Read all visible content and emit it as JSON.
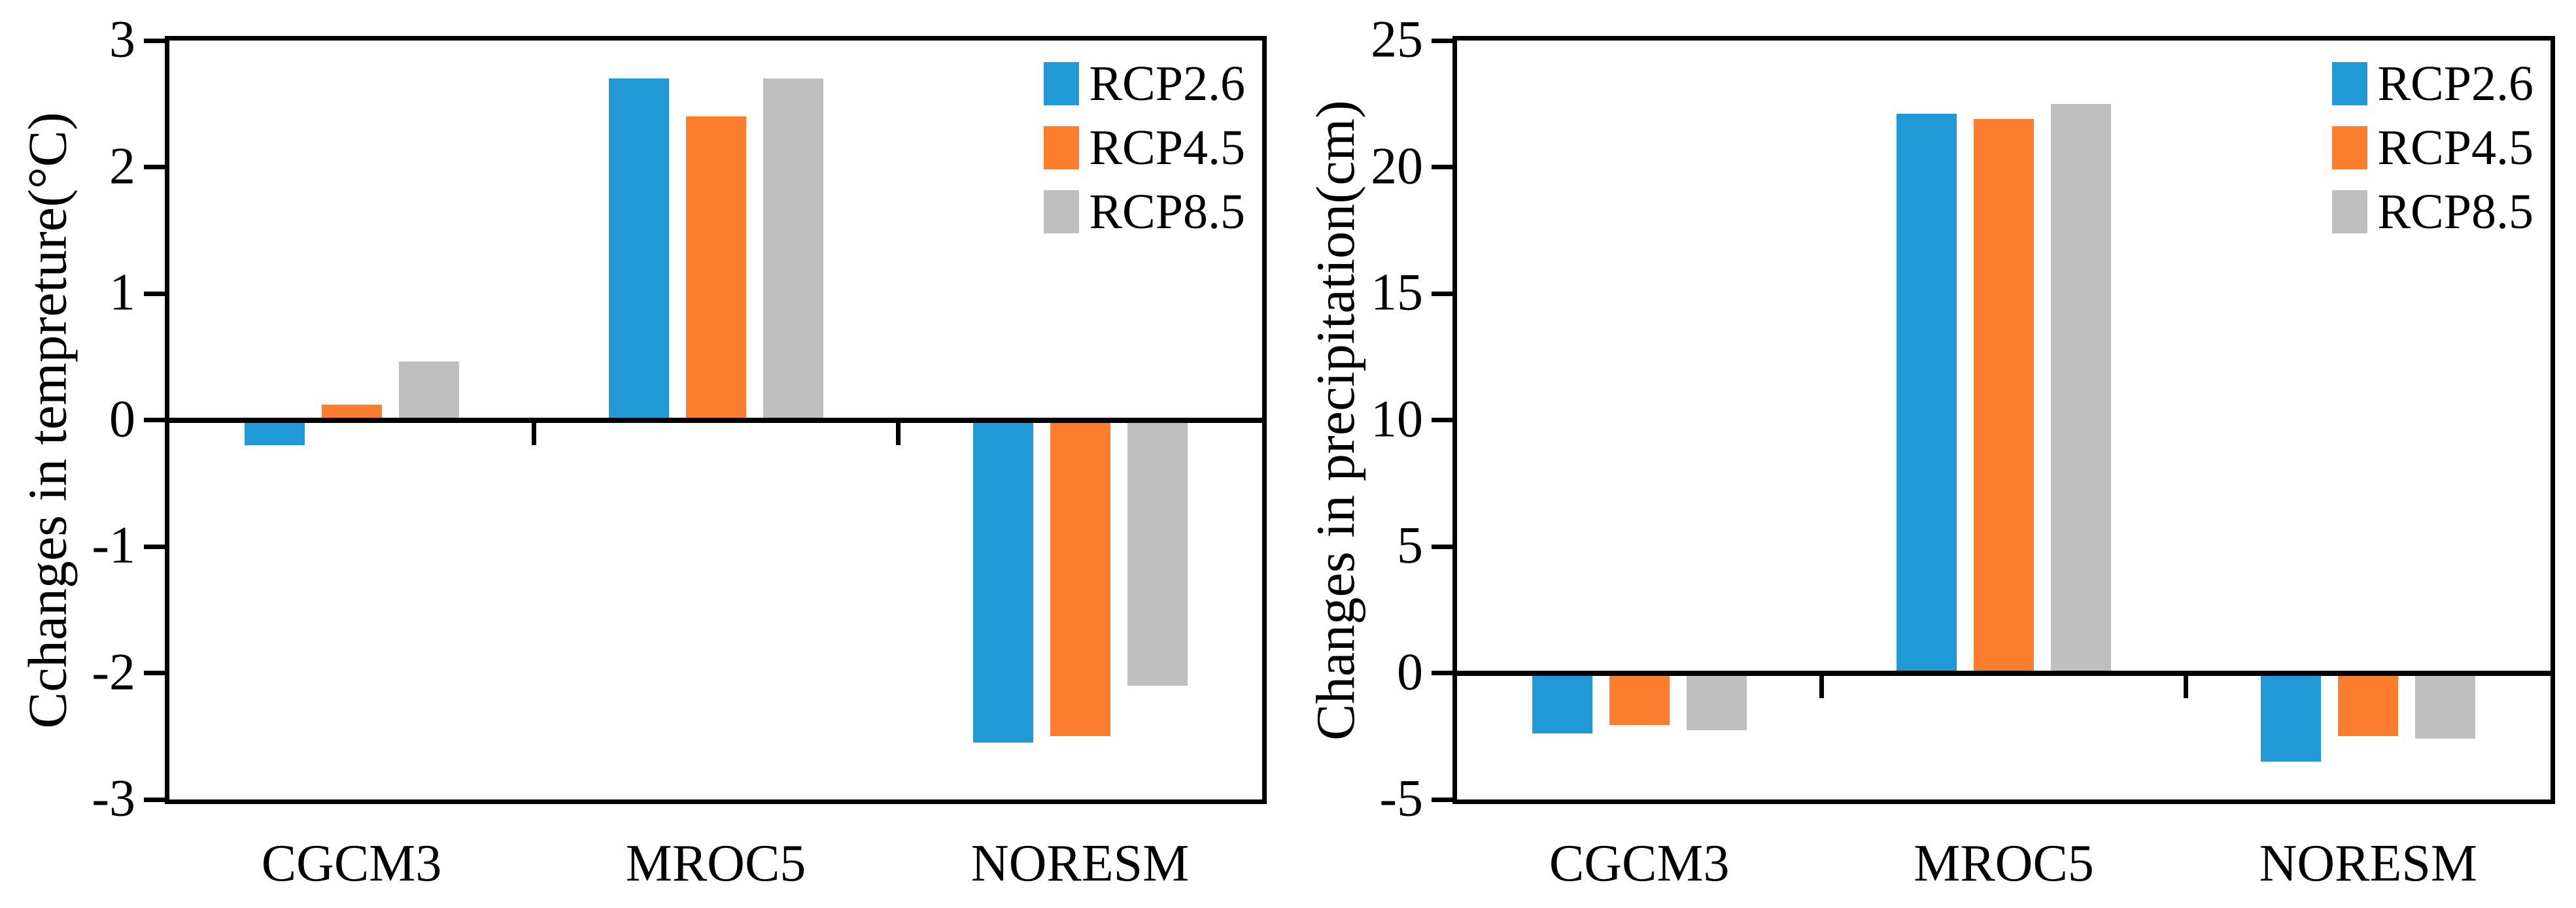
{
  "figure": {
    "background": "#ffffff",
    "axis_color": "#000000",
    "accent_colors": {
      "rcp26": "#2099D6",
      "rcp45": "#FC7D2D",
      "rcp85": "#BFBFBF"
    }
  },
  "legend": {
    "position": "top-right",
    "entries": [
      "RCP2.6",
      "RCP4.5",
      "RCP8.5"
    ]
  },
  "chart_data": [
    {
      "type": "bar",
      "title": "",
      "xlabel": "",
      "ylabel": "Cchanges in tempreture(°C)",
      "categories": [
        "CGCM3",
        "MROC5",
        "NORESM"
      ],
      "series": [
        {
          "name": "RCP2.6",
          "color": "#2099D6",
          "values": [
            -0.2,
            2.7,
            -2.55
          ]
        },
        {
          "name": "RCP4.5",
          "color": "#FC7D2D",
          "values": [
            0.12,
            2.4,
            -2.5
          ]
        },
        {
          "name": "RCP8.5",
          "color": "#BFBFBF",
          "values": [
            0.46,
            2.7,
            -2.1
          ]
        }
      ],
      "ylim": [
        -3,
        3
      ],
      "yticks": [
        3,
        2,
        1,
        0,
        -1,
        -2,
        -3
      ],
      "grid": false,
      "legend_position": "top-right"
    },
    {
      "type": "bar",
      "title": "",
      "xlabel": "",
      "ylabel": "Changes in precipitation(cm)",
      "categories": [
        "CGCM3",
        "MROC5",
        "NORESM"
      ],
      "series": [
        {
          "name": "RCP2.6",
          "color": "#2099D6",
          "values": [
            -2.4,
            22.1,
            -3.5
          ]
        },
        {
          "name": "RCP4.5",
          "color": "#FC7D2D",
          "values": [
            -2.05,
            21.9,
            -2.5
          ]
        },
        {
          "name": "RCP8.5",
          "color": "#BFBFBF",
          "values": [
            -2.25,
            22.5,
            -2.6
          ]
        }
      ],
      "ylim": [
        -5,
        25
      ],
      "yticks": [
        25,
        20,
        15,
        10,
        5,
        0,
        -5
      ],
      "grid": false,
      "legend_position": "top-right"
    }
  ]
}
